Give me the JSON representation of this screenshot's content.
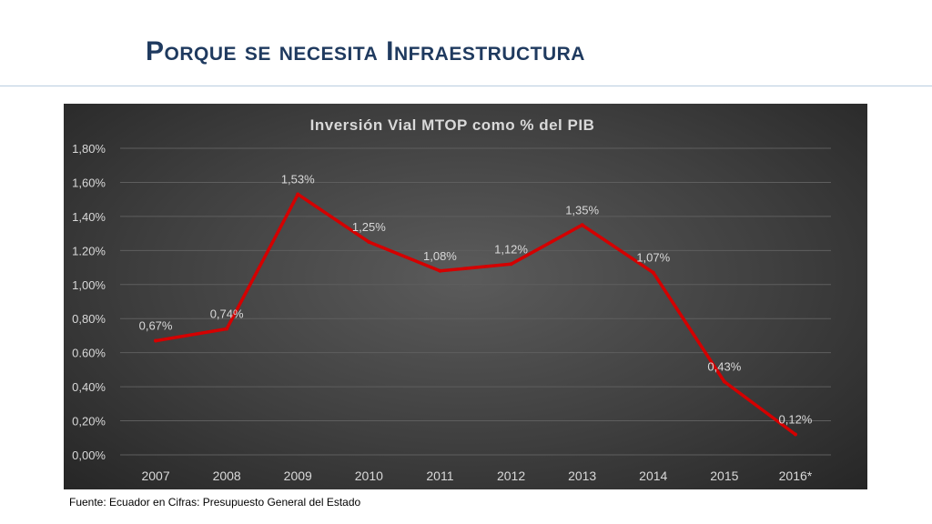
{
  "slide": {
    "title": "Porque se necesita Infraestructura",
    "source": "Fuente: Ecuador en Cifras: Presupuesto General del Estado"
  },
  "colors": {
    "title": "#1f3a5f",
    "line": "#d40000",
    "chart_text": "#d9d9d9",
    "grid": "#5e5e5e"
  },
  "chart_data": {
    "type": "line",
    "title": "Inversión Vial MTOP como % del PIB",
    "categories": [
      "2007",
      "2008",
      "2009",
      "2010",
      "2011",
      "2012",
      "2013",
      "2014",
      "2015",
      "2016*"
    ],
    "series": [
      {
        "values": [
          0.67,
          0.74,
          1.53,
          1.25,
          1.08,
          1.12,
          1.35,
          1.07,
          0.43,
          0.12
        ],
        "labels": [
          "0,67%",
          "0,74%",
          "1,53%",
          "1,25%",
          "1,08%",
          "1,12%",
          "1,35%",
          "1,07%",
          "0,43%",
          "0,12%"
        ]
      }
    ],
    "ylim": [
      0,
      1.8
    ],
    "yticks": [
      0,
      0.2,
      0.4,
      0.6,
      0.8,
      1.0,
      1.2,
      1.4,
      1.6,
      1.8
    ],
    "ytick_labels": [
      "0,00%",
      "0,20%",
      "0,40%",
      "0.60%",
      "0,80%",
      "1,00%",
      "1.20%",
      "1,40%",
      "1,60%",
      "1,80%"
    ],
    "grid": true,
    "xlabel": "",
    "ylabel": ""
  }
}
